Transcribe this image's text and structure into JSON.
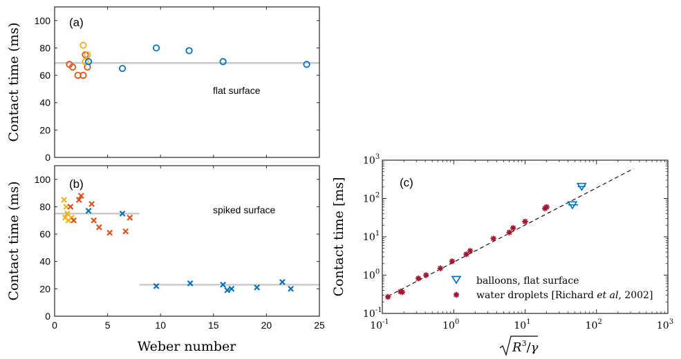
{
  "chart_data": [
    {
      "id": "a",
      "type": "scatter",
      "panel_label": "(a)",
      "annotation": "flat surface",
      "ylabel": "Contact time (ms)",
      "xlim": [
        0,
        25
      ],
      "ylim": [
        0,
        110
      ],
      "yticks": [
        0,
        20,
        40,
        60,
        80,
        100
      ],
      "xticks": [
        0,
        5,
        10,
        15,
        20,
        25
      ],
      "show_xticklabels": false,
      "marker": "circle",
      "reference_lines": [
        {
          "y": 69,
          "x": [
            0,
            25
          ],
          "color": "#c8c8c8"
        }
      ],
      "series": [
        {
          "color": "#d95319",
          "points": [
            [
              1.4,
              68
            ],
            [
              1.7,
              66
            ],
            [
              2.2,
              60
            ],
            [
              2.7,
              60
            ],
            [
              2.9,
              75
            ],
            [
              3.1,
              66
            ]
          ]
        },
        {
          "color": "#edb120",
          "points": [
            [
              2.7,
              82
            ],
            [
              3.1,
              75
            ],
            [
              2.9,
              70
            ]
          ]
        },
        {
          "color": "#0072bd",
          "points": [
            [
              3.2,
              70
            ],
            [
              6.4,
              65
            ],
            [
              9.6,
              80
            ],
            [
              12.7,
              78
            ],
            [
              15.9,
              70
            ],
            [
              23.8,
              68
            ]
          ]
        }
      ]
    },
    {
      "id": "b",
      "type": "scatter",
      "panel_label": "(b)",
      "annotation": "spiked surface",
      "ylabel": "Contact time (ms)",
      "xlabel": "Weber number",
      "xlim": [
        0,
        25
      ],
      "ylim": [
        0,
        110
      ],
      "yticks": [
        0,
        20,
        40,
        60,
        80,
        100
      ],
      "xticks": [
        0,
        5,
        10,
        15,
        20,
        25
      ],
      "show_xticklabels": true,
      "marker": "x",
      "reference_lines": [
        {
          "y": 75,
          "x": [
            0,
            8
          ],
          "color": "#c8c8c8"
        },
        {
          "y": 23,
          "x": [
            8,
            25
          ],
          "color": "#c8c8c8"
        }
      ],
      "series": [
        {
          "color": "#edb120",
          "points": [
            [
              0.9,
              85
            ],
            [
              1.1,
              80
            ],
            [
              1.2,
              75
            ],
            [
              1.0,
              72
            ],
            [
              1.3,
              70
            ],
            [
              1.6,
              72
            ]
          ]
        },
        {
          "color": "#d95319",
          "points": [
            [
              1.5,
              80
            ],
            [
              1.8,
              70
            ],
            [
              2.3,
              85
            ],
            [
              2.5,
              88
            ],
            [
              3.5,
              82
            ],
            [
              3.7,
              70
            ],
            [
              4.2,
              65
            ],
            [
              5.2,
              61
            ],
            [
              6.7,
              62
            ],
            [
              7.1,
              72
            ]
          ]
        },
        {
          "color": "#0072bd",
          "points": [
            [
              3.2,
              77
            ],
            [
              6.4,
              75
            ],
            [
              9.6,
              22
            ],
            [
              12.8,
              24
            ],
            [
              15.9,
              23
            ],
            [
              16.3,
              19
            ],
            [
              16.7,
              20
            ],
            [
              19.1,
              21
            ],
            [
              21.5,
              25
            ],
            [
              22.3,
              20
            ]
          ]
        }
      ]
    },
    {
      "id": "c",
      "type": "scatter",
      "panel_label": "(c)",
      "ylabel": "Contact time [ms]",
      "xlabel_parts": {
        "sqrt_arg": "R",
        "sup": "3",
        "slash": "/",
        "gamma": "γ"
      },
      "xscale": "log",
      "yscale": "log",
      "xlim": [
        0.1,
        1000
      ],
      "ylim": [
        0.1,
        1000
      ],
      "xtick_exponents": [
        "-1",
        "0",
        "1",
        "2",
        "3"
      ],
      "ytick_exponents": [
        "-1",
        "0",
        "1",
        "2",
        "3"
      ],
      "tick_base": "10",
      "fit_line": {
        "style": "dashed",
        "color": "#000000",
        "points": [
          [
            0.12,
            0.28
          ],
          [
            330,
            600
          ]
        ]
      },
      "series": [
        {
          "name": "balloons, flat surface",
          "marker": "triangle-down",
          "color": "#0072bd",
          "points": [
            [
              46,
              68
            ],
            [
              62,
              205
            ]
          ],
          "xerr": [
            [
              40,
              55
            ],
            [
              55,
              70
            ]
          ]
        },
        {
          "name_before": "water droplets [Richard ",
          "name_italic": "et al",
          "name_after": ", 2002]",
          "marker": "asterisk",
          "color": "#a2142f",
          "points": [
            [
              0.12,
              0.27
            ],
            [
              0.18,
              0.37
            ],
            [
              0.19,
              0.36
            ],
            [
              0.32,
              0.82
            ],
            [
              0.41,
              1.0
            ],
            [
              0.65,
              1.5
            ],
            [
              0.95,
              2.3
            ],
            [
              1.5,
              3.5
            ],
            [
              1.7,
              4.3
            ],
            [
              3.6,
              9.0
            ],
            [
              6.0,
              13
            ],
            [
              6.8,
              17
            ],
            [
              10,
              25
            ],
            [
              19,
              55
            ],
            [
              20,
              60
            ]
          ]
        }
      ]
    }
  ]
}
